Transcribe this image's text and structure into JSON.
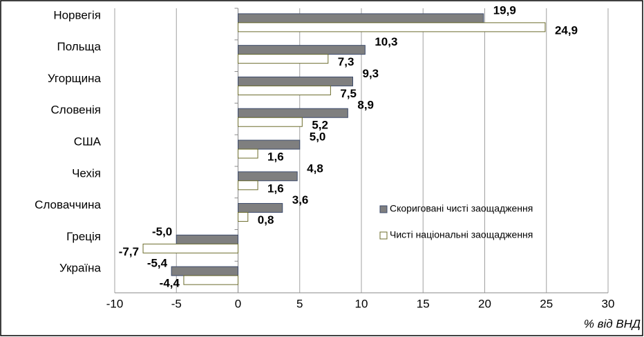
{
  "chart_data": {
    "type": "bar",
    "orientation": "horizontal",
    "categories": [
      "Норвегія",
      "Польща",
      "Угорщина",
      "Словенія",
      "США",
      "Чехія",
      "Словаччина",
      "Греція",
      "Україна"
    ],
    "series": [
      {
        "name": "Скориговані чисті заощадження",
        "color": "#7f7f7f",
        "edge": "#3b4a6b",
        "values": [
          19.9,
          10.3,
          9.3,
          8.9,
          5.0,
          4.8,
          3.6,
          -5.0,
          -5.4
        ],
        "value_labels": [
          "19,9",
          "10,3",
          "9,3",
          "8,9",
          "5,0",
          "4,8",
          "3,6",
          "-5,0",
          "-5,4"
        ]
      },
      {
        "name": "Чисті національні заощадження",
        "color": "#ffffff",
        "edge": "#6b6b2a",
        "values": [
          24.9,
          7.3,
          7.5,
          5.2,
          1.6,
          1.6,
          0.8,
          -7.7,
          -4.4
        ],
        "value_labels": [
          "24,9",
          "7,3",
          "7,5",
          "5,2",
          "1,6",
          "1,6",
          "0,8",
          "-7,7",
          "-4,4"
        ]
      }
    ],
    "xlabel": "% від ВНД",
    "xlim": [
      -10,
      30
    ],
    "xticks": [
      -10,
      -5,
      0,
      5,
      10,
      15,
      20,
      25,
      30
    ],
    "grid": true,
    "legend": "lower right"
  }
}
